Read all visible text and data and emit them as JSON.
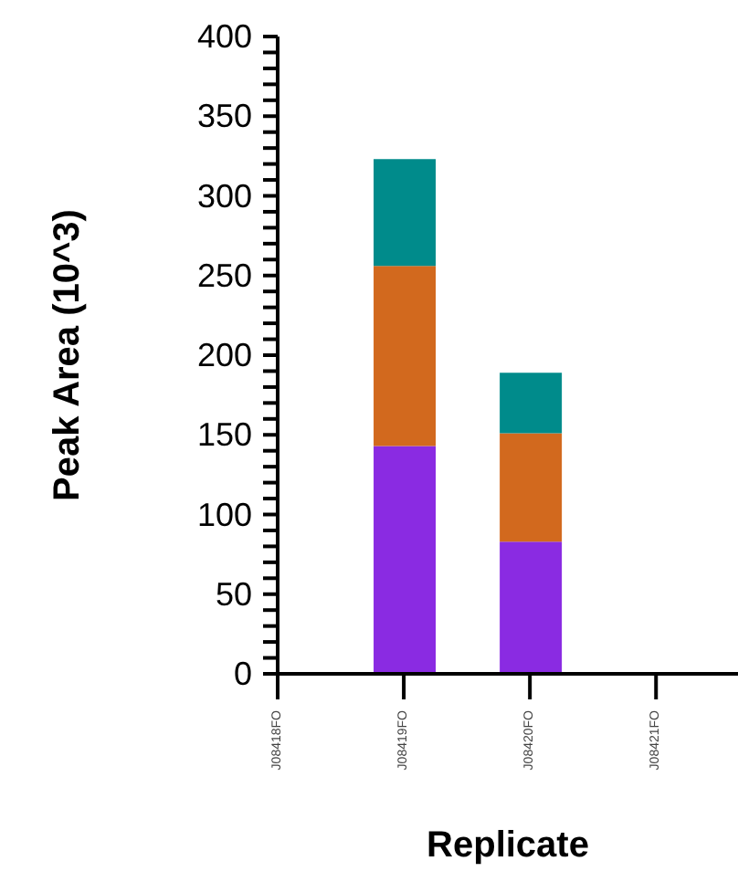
{
  "chart_data": {
    "type": "bar",
    "stacked": true,
    "xlabel": "Replicate",
    "ylabel": "Peak Area (10^3)",
    "categories": [
      "J08418FO",
      "J08419FO",
      "J08420FO",
      "J08421FO"
    ],
    "series": [
      {
        "color": "#8a2be2",
        "values": [
          null,
          143,
          83,
          null
        ]
      },
      {
        "color": "#d2691e",
        "values": [
          null,
          113,
          68,
          null
        ]
      },
      {
        "color": "#008b8b",
        "values": [
          null,
          67,
          38,
          null
        ]
      }
    ],
    "ylim": [
      0,
      400
    ],
    "yticks": [
      0,
      {
        "value": 10,
        "label": null
      },
      {
        "value": 20,
        "label": null
      },
      {
        "value": 30,
        "label": null
      },
      {
        "value": 40,
        "label": null
      },
      50,
      {
        "value": 60,
        "label": null
      },
      {
        "value": 70,
        "label": null
      },
      {
        "value": 80,
        "label": null
      },
      {
        "value": 90,
        "label": null
      },
      100,
      {
        "value": 110,
        "label": null
      },
      {
        "value": 120,
        "label": null
      },
      {
        "value": 130,
        "label": null
      },
      {
        "value": 140,
        "label": null
      },
      150,
      {
        "value": 160,
        "label": null
      },
      {
        "value": 170,
        "label": null
      },
      {
        "value": 180,
        "label": null
      },
      {
        "value": 190,
        "label": null
      },
      200,
      {
        "value": 210,
        "label": null
      },
      {
        "value": 220,
        "label": null
      },
      {
        "value": 230,
        "label": null
      },
      {
        "value": 240,
        "label": null
      },
      250,
      {
        "value": 260,
        "label": null
      },
      {
        "value": 270,
        "label": null
      },
      {
        "value": 280,
        "label": null
      },
      {
        "value": 290,
        "label": null
      },
      300,
      {
        "value": 310,
        "label": null
      },
      {
        "value": 320,
        "label": null
      },
      {
        "value": 330,
        "label": null
      },
      {
        "value": 340,
        "label": null
      },
      350,
      {
        "value": 360,
        "label": null
      },
      {
        "value": 370,
        "label": null
      },
      {
        "value": 380,
        "label": null
      },
      {
        "value": 390,
        "label": null
      },
      400
    ],
    "grid": false,
    "legend": false
  }
}
